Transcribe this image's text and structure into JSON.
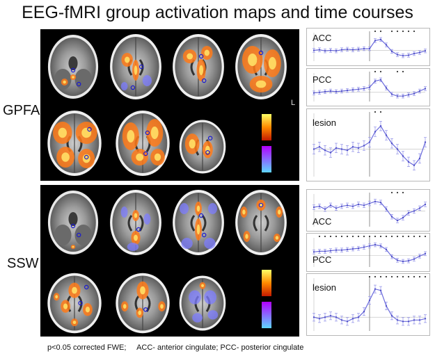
{
  "title": "EEG-fMRI group activation maps and time courses",
  "rows": [
    {
      "label": "GPFA",
      "orient": "L"
    },
    {
      "label": "SSW"
    }
  ],
  "timecourses": {
    "gpfa": [
      {
        "label": "ACC",
        "values": [
          0.0,
          0.1,
          -0.1,
          0.0,
          -0.1,
          0.1,
          0.2,
          0.1,
          0.2,
          0.3,
          0.3,
          1.8,
          2.0,
          1.0,
          -0.2,
          -0.8,
          -1.0,
          -0.9,
          -0.6,
          -0.4,
          -0.1
        ],
        "significant": [
          11,
          12,
          14,
          15,
          16,
          17,
          18
        ]
      },
      {
        "label": "PCC",
        "values": [
          -0.1,
          0.0,
          0.1,
          0.2,
          0.1,
          0.2,
          0.3,
          0.4,
          0.5,
          0.6,
          0.8,
          1.8,
          2.0,
          0.7,
          -0.3,
          -0.6,
          -0.6,
          -0.4,
          -0.2,
          0.2,
          0.6
        ],
        "significant": [
          11,
          12,
          15,
          16
        ]
      },
      {
        "label": "lesion",
        "values": [
          0.0,
          0.2,
          -0.1,
          -0.3,
          0.1,
          0.0,
          -0.1,
          0.2,
          0.1,
          0.3,
          0.6,
          1.5,
          2.0,
          1.2,
          0.5,
          0.0,
          -0.6,
          -1.1,
          -1.4,
          -0.8,
          0.6
        ],
        "significant": [
          11,
          12
        ]
      }
    ],
    "ssw": [
      {
        "label": "ACC",
        "values": [
          0.4,
          0.5,
          0.2,
          0.6,
          0.3,
          0.5,
          0.6,
          0.5,
          0.7,
          0.6,
          0.8,
          1.0,
          0.9,
          0.2,
          -0.6,
          -1.0,
          -0.7,
          -0.2,
          0.0,
          0.3,
          0.7
        ],
        "significant": [
          14,
          15,
          16
        ]
      },
      {
        "label": "PCC",
        "values": [
          0.6,
          0.7,
          0.7,
          0.8,
          0.9,
          0.9,
          1.0,
          1.1,
          1.2,
          1.4,
          1.6,
          1.8,
          1.6,
          1.0,
          -0.2,
          -0.8,
          -1.0,
          -0.9,
          -0.6,
          -0.1,
          0.3
        ],
        "significant": [
          1,
          2,
          3,
          4,
          5,
          6,
          7,
          8,
          9,
          10,
          11,
          12,
          13,
          14,
          15,
          16,
          17,
          18,
          19,
          20
        ]
      },
      {
        "label": "lesion",
        "values": [
          0.0,
          -0.1,
          0.0,
          0.1,
          0.0,
          -0.2,
          -0.3,
          -0.1,
          0.0,
          0.4,
          1.2,
          2.0,
          1.9,
          0.8,
          0.1,
          -0.2,
          -0.3,
          -0.3,
          -0.2,
          -0.2,
          -0.1
        ],
        "significant": [
          10,
          11,
          12,
          13,
          14,
          15,
          16,
          17,
          18,
          19,
          20
        ]
      }
    ]
  },
  "footer": "p<0.05 corrected FWE;     ACC- anterior cingulate; PCC- posterior cingulate"
}
